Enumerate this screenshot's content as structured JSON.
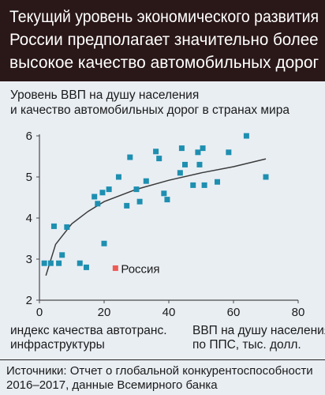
{
  "title": {
    "lines": [
      "Текущий уровень экономического развития",
      "России предполагает значительно более",
      "высокое качество автомобильных дорог"
    ]
  },
  "subtitle": {
    "lines": [
      "Уровень ВВП на душу населения",
      "и качество автомобильных дорог в странах мира"
    ]
  },
  "xlabel_lines": [
    "ВВП на душу населения",
    "по ППС, тыс. долл."
  ],
  "ylabel_lines": [
    "индекс качества автотранс.",
    "инфраструктуры"
  ],
  "source_lines": [
    "Источники: Отчет о глобальной конкурентоспособности",
    "2016–2017, данные Всемирного банка"
  ],
  "chart_data": {
    "type": "scatter",
    "xlim": [
      0,
      80
    ],
    "ylim": [
      2,
      6
    ],
    "xticks": [
      "0",
      "20",
      "40",
      "60",
      "80"
    ],
    "yticks": [
      "2",
      "3",
      "4",
      "5",
      "6"
    ],
    "grid": false,
    "colors": {
      "points": "#1e8fb0",
      "highlight": "#ee5b54",
      "trend": "#3a3a3a",
      "axis": "#4a4a4a"
    },
    "points": [
      {
        "x": 1.5,
        "y": 2.9
      },
      {
        "x": 3.5,
        "y": 2.9
      },
      {
        "x": 4.5,
        "y": 3.8
      },
      {
        "x": 6.0,
        "y": 2.9
      },
      {
        "x": 7.0,
        "y": 3.1
      },
      {
        "x": 8.5,
        "y": 3.78
      },
      {
        "x": 12.5,
        "y": 2.9
      },
      {
        "x": 14.5,
        "y": 2.8
      },
      {
        "x": 17.0,
        "y": 4.52
      },
      {
        "x": 18.0,
        "y": 4.35
      },
      {
        "x": 19.5,
        "y": 4.62
      },
      {
        "x": 20.0,
        "y": 3.38
      },
      {
        "x": 21.5,
        "y": 4.7
      },
      {
        "x": 24.5,
        "y": 5.0
      },
      {
        "x": 27.0,
        "y": 4.3
      },
      {
        "x": 28.0,
        "y": 5.48
      },
      {
        "x": 30.0,
        "y": 4.7
      },
      {
        "x": 31.0,
        "y": 4.4
      },
      {
        "x": 33.0,
        "y": 4.9
      },
      {
        "x": 36.0,
        "y": 5.62
      },
      {
        "x": 37.0,
        "y": 5.45
      },
      {
        "x": 38.5,
        "y": 4.6
      },
      {
        "x": 39.5,
        "y": 4.45
      },
      {
        "x": 43.5,
        "y": 5.1
      },
      {
        "x": 44.0,
        "y": 5.7
      },
      {
        "x": 45.0,
        "y": 5.3
      },
      {
        "x": 47.5,
        "y": 4.8
      },
      {
        "x": 49.0,
        "y": 5.6
      },
      {
        "x": 49.5,
        "y": 5.3
      },
      {
        "x": 50.5,
        "y": 5.7
      },
      {
        "x": 51.0,
        "y": 4.8
      },
      {
        "x": 55.0,
        "y": 4.88
      },
      {
        "x": 58.5,
        "y": 5.6
      },
      {
        "x": 64.0,
        "y": 6.0
      },
      {
        "x": 70.0,
        "y": 5.0
      }
    ],
    "highlight": {
      "x": 23.5,
      "y": 2.78,
      "label": "Россия"
    },
    "trendline": {
      "type": "log",
      "points": [
        {
          "x": 2,
          "y": 2.6
        },
        {
          "x": 5,
          "y": 3.36
        },
        {
          "x": 10,
          "y": 3.86
        },
        {
          "x": 15,
          "y": 4.16
        },
        {
          "x": 20,
          "y": 4.4
        },
        {
          "x": 30,
          "y": 4.7
        },
        {
          "x": 40,
          "y": 4.92
        },
        {
          "x": 50,
          "y": 5.1
        },
        {
          "x": 60,
          "y": 5.25
        },
        {
          "x": 70,
          "y": 5.44
        }
      ]
    }
  }
}
